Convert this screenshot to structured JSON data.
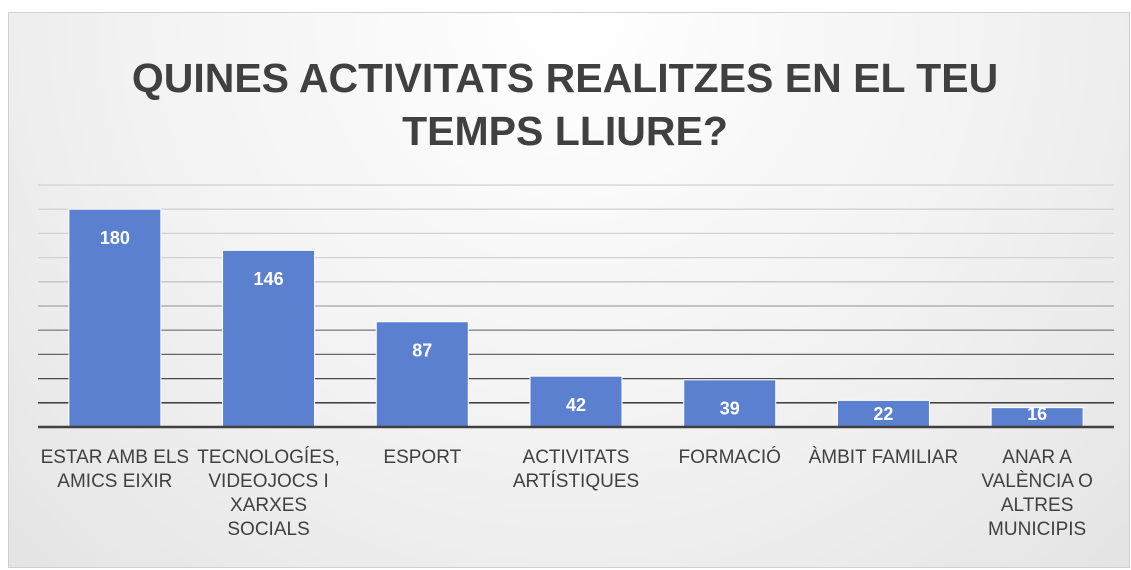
{
  "chart_data": {
    "type": "bar",
    "title": "QUINES ACTIVITATS REALITZES EN EL TEU TEMPS LLIURE?",
    "categories": [
      "ESTAR AMB ELS AMICS EIXIR",
      "TECNOLOGÍES, VIDEOJOCS I XARXES SOCIALS",
      "ESPORT",
      "ACTIVITATS ARTÍSTIQUES",
      "FORMACIÓ",
      "ÀMBIT FAMILIAR",
      "ANAR A VALÈNCIA O ALTRES MUNICIPIS"
    ],
    "values": [
      180,
      146,
      87,
      42,
      39,
      22,
      16
    ],
    "color": "#5b80cf",
    "ylim": [
      0,
      200
    ],
    "yticks": [
      0,
      20,
      40,
      60,
      80,
      100,
      120,
      140,
      160,
      180,
      200
    ],
    "grid": true
  }
}
